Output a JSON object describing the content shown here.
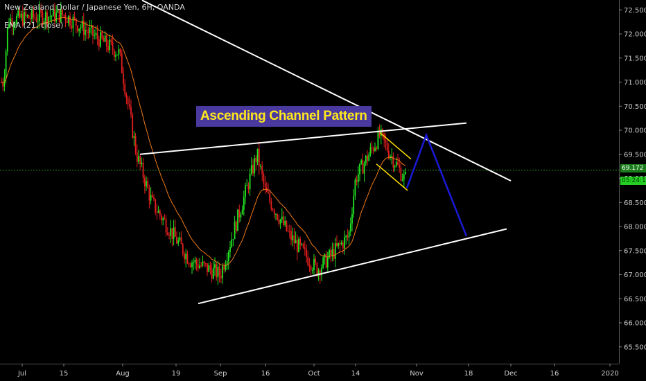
{
  "header": {
    "symbol": "New Zealand Dollar / Japanese Yen, 6H, OANDA",
    "indicator": "EMA (21, close)"
  },
  "price_tag": "69.172",
  "timer_tag": "05:24:17",
  "annotation": "Ascending Channel Pattern",
  "colors": {
    "up": "#22e622",
    "down": "#e61e1e",
    "ema": "#f07a1a",
    "trendline": "#ffffff",
    "flag": "#ffe000",
    "projection": "#1a1ad8",
    "current_price_line": "#1fa01f"
  },
  "chart_data": {
    "type": "candlestick",
    "y_ticks": [
      "65.500",
      "66.000",
      "66.500",
      "67.000",
      "67.500",
      "68.000",
      "68.500",
      "69.000",
      "69.500",
      "70.000",
      "70.500",
      "71.000",
      "71.500",
      "72.000",
      "72.500"
    ],
    "x_ticks": [
      "Jul",
      "15",
      "Aug",
      "19",
      "Sep",
      "16",
      "Oct",
      "14",
      "Nov",
      "18",
      "Dec",
      "16",
      "2020"
    ],
    "current_price": 69.172,
    "price_path": [
      [
        "Jul",
        71.0
      ],
      [
        "Jul",
        72.3
      ],
      [
        "15",
        72.4
      ],
      [
        "Aug",
        71.6
      ],
      [
        "Aug",
        69.5
      ],
      [
        "19",
        68.5
      ],
      [
        "19",
        67.3
      ],
      [
        "Sep",
        67.0
      ],
      [
        "16",
        69.5
      ],
      [
        "16",
        68.7
      ],
      [
        "Oct",
        67.8
      ],
      [
        "Oct",
        67.1
      ],
      [
        "14",
        67.8
      ],
      [
        "14",
        69.0
      ],
      [
        "14",
        69.9
      ],
      [
        "Nov",
        69.0
      ]
    ],
    "upper_channel": [
      [
        "Aug",
        69.5
      ],
      [
        "18",
        70.15
      ]
    ],
    "lower_channel": [
      [
        "19",
        66.4
      ],
      [
        "Dec",
        67.95
      ]
    ],
    "descending_trendline": [
      [
        "Jul",
        72.7
      ],
      [
        "Dec",
        68.95
      ]
    ],
    "flag_upper": [
      [
        "14",
        69.95
      ],
      [
        "Nov",
        69.4
      ]
    ],
    "flag_lower": [
      [
        "14",
        69.3
      ],
      [
        "Nov",
        68.75
      ]
    ],
    "projection": [
      [
        "Nov",
        68.8
      ],
      [
        "Nov",
        69.9
      ],
      [
        "18",
        67.8
      ]
    ]
  }
}
